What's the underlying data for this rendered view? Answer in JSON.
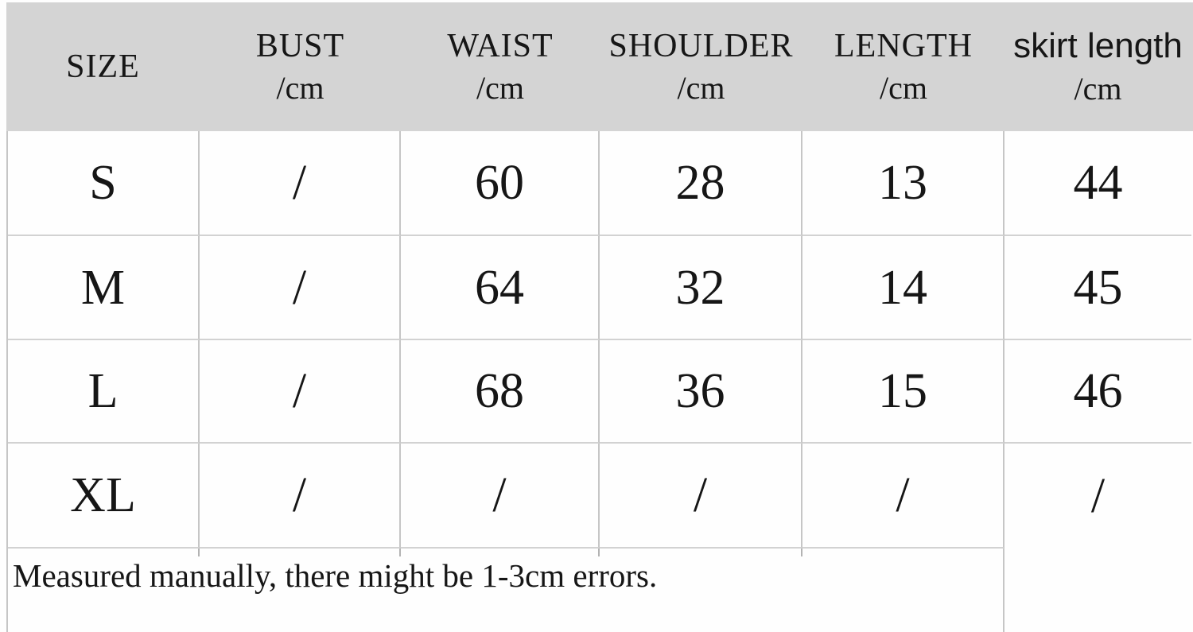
{
  "colors": {
    "header_bg": "#d4d4d4",
    "grid_line_vertical": "#c6c6c6",
    "grid_line_horizontal": "#d2d2d2",
    "text": "#161616",
    "background": "#fefefe"
  },
  "header": {
    "cols": [
      {
        "label": "SIZE",
        "unit": ""
      },
      {
        "label": "BUST",
        "unit": "/cm"
      },
      {
        "label": "WAIST",
        "unit": "/cm"
      },
      {
        "label": "SHOULDER",
        "unit": "/cm"
      },
      {
        "label": "LENGTH",
        "unit": "/cm"
      },
      {
        "label": "skirt length",
        "unit": "/cm"
      }
    ]
  },
  "body": {
    "rows": [
      {
        "cells": [
          "S",
          "/",
          "60",
          "28",
          "13",
          "44"
        ]
      },
      {
        "cells": [
          "M",
          "/",
          "64",
          "32",
          "14",
          "45"
        ]
      },
      {
        "cells": [
          "L",
          "/",
          "68",
          "36",
          "15",
          "46"
        ]
      },
      {
        "cells": [
          "XL",
          "/",
          "/",
          "/",
          "/",
          "/"
        ]
      }
    ]
  },
  "note": "Measured manually, there might be 1-3cm errors.",
  "chart_data": {
    "type": "table",
    "columns": [
      "SIZE",
      "BUST /cm",
      "WAIST /cm",
      "SHOULDER /cm",
      "LENGTH /cm",
      "skirt length /cm"
    ],
    "rows": [
      [
        "S",
        "/",
        "60",
        "28",
        "13",
        "44"
      ],
      [
        "M",
        "/",
        "64",
        "32",
        "14",
        "45"
      ],
      [
        "L",
        "/",
        "68",
        "36",
        "15",
        "46"
      ],
      [
        "XL",
        "/",
        "/",
        "/",
        "/",
        "/"
      ]
    ],
    "units": "cm",
    "note": "Measured manually, there might be 1-3cm errors."
  }
}
